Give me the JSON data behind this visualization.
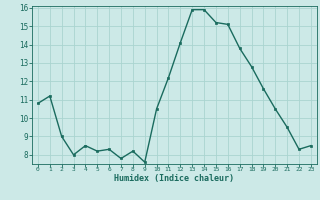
{
  "x": [
    0,
    1,
    2,
    3,
    4,
    5,
    6,
    7,
    8,
    9,
    10,
    11,
    12,
    13,
    14,
    15,
    16,
    17,
    18,
    19,
    20,
    21,
    22,
    23
  ],
  "y": [
    10.8,
    11.2,
    9.0,
    8.0,
    8.5,
    8.2,
    8.3,
    7.8,
    8.2,
    7.6,
    10.5,
    12.2,
    14.1,
    15.9,
    15.9,
    15.2,
    15.1,
    13.8,
    12.8,
    11.6,
    10.5,
    9.5,
    8.3,
    8.5
  ],
  "xlabel": "Humidex (Indice chaleur)",
  "bg_color": "#cce9e7",
  "grid_color": "#aad4d0",
  "line_color": "#1a6b5e",
  "ylim_min": 7.5,
  "ylim_max": 16.1,
  "xlim_min": -0.5,
  "xlim_max": 23.5,
  "yticks": [
    8,
    9,
    10,
    11,
    12,
    13,
    14,
    15,
    16
  ],
  "xticks": [
    0,
    1,
    2,
    3,
    4,
    5,
    6,
    7,
    8,
    9,
    10,
    11,
    12,
    13,
    14,
    15,
    16,
    17,
    18,
    19,
    20,
    21,
    22,
    23
  ]
}
